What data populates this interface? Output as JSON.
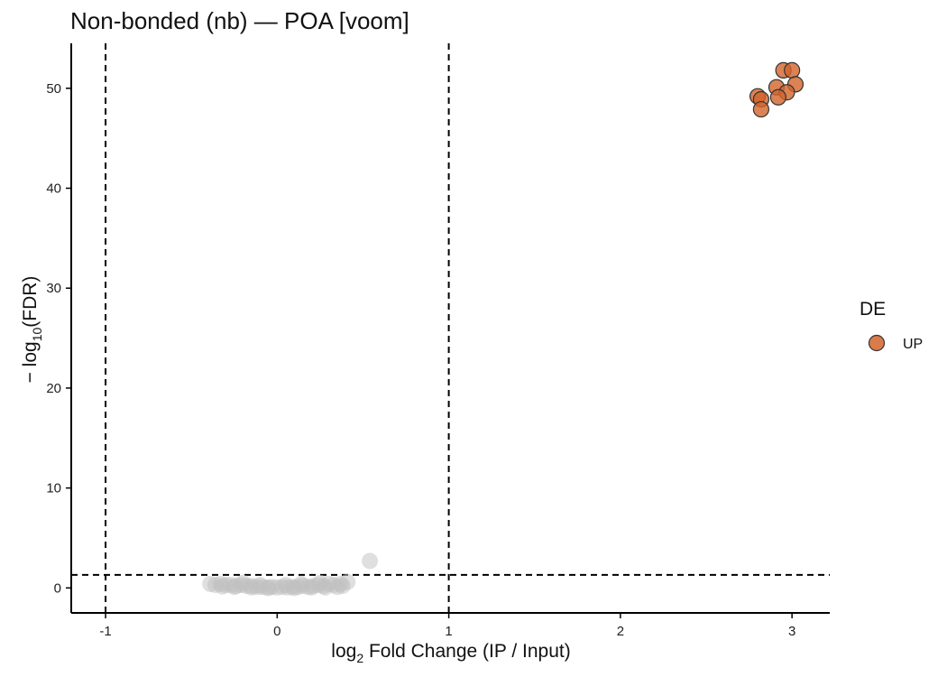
{
  "chart_data": {
    "type": "scatter",
    "title": "Non-bonded (nb) — POA [voom]",
    "xlabel": {
      "pre": "log",
      "sub": "2",
      "post": " Fold Change (IP / Input)"
    },
    "ylabel": {
      "pre": "− log",
      "sub": "10",
      "post": "(FDR)"
    },
    "xlim": [
      -1.2,
      3.22
    ],
    "ylim": [
      -2.5,
      54.5
    ],
    "xticks": [
      -1,
      0,
      1,
      2,
      3
    ],
    "xtick_labels": [
      "-1",
      "0",
      "1",
      "2",
      "3"
    ],
    "yticks": [
      0,
      10,
      20,
      30,
      40,
      50
    ],
    "ytick_labels": [
      "0",
      "10",
      "20",
      "30",
      "40",
      "50"
    ],
    "threshold_lines": {
      "x": [
        -1,
        1
      ],
      "y": [
        1.3
      ]
    },
    "grid": false,
    "legend": {
      "title": "DE",
      "position": "right",
      "entries": [
        {
          "label": "UP",
          "color": "#d2642a"
        }
      ]
    },
    "series": [
      {
        "name": "UP",
        "color": "#d2642a",
        "points": [
          [
            2.95,
            51.8
          ],
          [
            3.0,
            51.8
          ],
          [
            2.91,
            50.1
          ],
          [
            3.02,
            50.4
          ],
          [
            2.97,
            49.6
          ],
          [
            2.92,
            49.1
          ],
          [
            2.8,
            49.2
          ],
          [
            2.82,
            48.9
          ],
          [
            2.82,
            47.9
          ]
        ]
      },
      {
        "color": "#bfbfbf",
        "points": [
          [
            0.54,
            2.7
          ],
          [
            0.41,
            0.6
          ],
          [
            0.37,
            0.4
          ],
          [
            0.33,
            0.3
          ],
          [
            0.3,
            0.4
          ],
          [
            0.27,
            0.2
          ],
          [
            0.24,
            0.3
          ],
          [
            0.21,
            0.2
          ],
          [
            0.18,
            0.1
          ],
          [
            0.15,
            0.2
          ],
          [
            0.12,
            0.1
          ],
          [
            0.09,
            0.1
          ],
          [
            0.06,
            0.05
          ],
          [
            0.03,
            0.1
          ],
          [
            0.0,
            0.05
          ],
          [
            -0.03,
            0.1
          ],
          [
            -0.06,
            0.05
          ],
          [
            -0.09,
            0.1
          ],
          [
            -0.12,
            0.1
          ],
          [
            -0.15,
            0.2
          ],
          [
            -0.18,
            0.2
          ],
          [
            -0.21,
            0.3
          ],
          [
            -0.24,
            0.2
          ],
          [
            -0.27,
            0.3
          ],
          [
            -0.3,
            0.3
          ],
          [
            -0.33,
            0.4
          ],
          [
            -0.36,
            0.3
          ],
          [
            -0.39,
            0.4
          ],
          [
            0.35,
            0.1
          ],
          [
            0.28,
            0.05
          ],
          [
            0.2,
            0.05
          ],
          [
            0.1,
            0.0
          ],
          [
            -0.05,
            0.0
          ],
          [
            -0.15,
            0.05
          ],
          [
            -0.25,
            0.1
          ],
          [
            -0.32,
            0.15
          ],
          [
            0.38,
            0.2
          ],
          [
            0.25,
            0.5
          ],
          [
            -0.2,
            0.5
          ],
          [
            0.05,
            0.3
          ],
          [
            -0.1,
            0.3
          ],
          [
            0.14,
            0.4
          ]
        ]
      }
    ]
  }
}
